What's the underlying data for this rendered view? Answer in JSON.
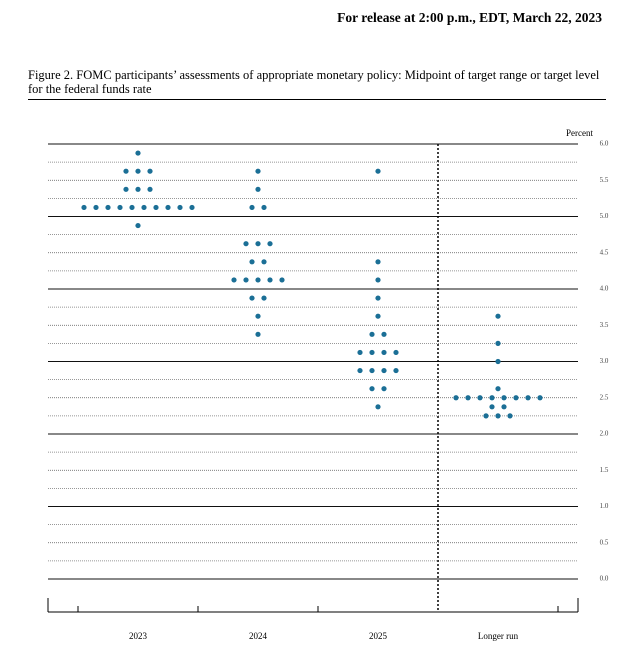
{
  "header": {
    "release": "For release at 2:00 p.m., EDT, March 22, 2023"
  },
  "chart_data": {
    "type": "dot",
    "title": "Figure 2.  FOMC participants’ assessments of appropriate monetary policy: Midpoint of target range or target level for the federal funds rate",
    "y_label": "Percent",
    "categories": [
      "2023",
      "2024",
      "2025",
      "Longer run"
    ],
    "values": [
      [
        5.875,
        5.625,
        5.625,
        5.625,
        5.375,
        5.375,
        5.375,
        5.125,
        5.125,
        5.125,
        5.125,
        5.125,
        5.125,
        5.125,
        5.125,
        5.125,
        5.125,
        4.875
      ],
      [
        5.625,
        5.375,
        5.125,
        5.125,
        4.625,
        4.625,
        4.625,
        4.375,
        4.375,
        4.125,
        4.125,
        4.125,
        4.125,
        4.125,
        3.875,
        3.875,
        3.625,
        3.375
      ],
      [
        5.625,
        4.375,
        4.125,
        3.875,
        3.625,
        3.375,
        3.375,
        3.125,
        3.125,
        3.125,
        3.125,
        2.875,
        2.875,
        2.875,
        2.875,
        2.625,
        2.625,
        2.375
      ],
      [
        3.625,
        3.25,
        3.0,
        2.625,
        2.5,
        2.5,
        2.5,
        2.5,
        2.5,
        2.5,
        2.5,
        2.5,
        2.375,
        2.375,
        2.25,
        2.25,
        2.25
      ]
    ],
    "color": "#1b6f96",
    "ylim": [
      0,
      6
    ],
    "yticks": [
      {
        "value": 0,
        "label": "0.0"
      },
      {
        "value": 0.5,
        "label": "0.5"
      },
      {
        "value": 1,
        "label": "1.0"
      },
      {
        "value": 1.5,
        "label": "1.5"
      },
      {
        "value": 2,
        "label": "2.0"
      },
      {
        "value": 2.5,
        "label": "2.5"
      },
      {
        "value": 3,
        "label": "3.0"
      },
      {
        "value": 3.5,
        "label": "3.5"
      },
      {
        "value": 4,
        "label": "4.0"
      },
      {
        "value": 4.5,
        "label": "4.5"
      },
      {
        "value": 5,
        "label": "5.0"
      },
      {
        "value": 5.5,
        "label": "5.5"
      },
      {
        "value": 6,
        "label": "6.0"
      }
    ],
    "grid": true
  }
}
